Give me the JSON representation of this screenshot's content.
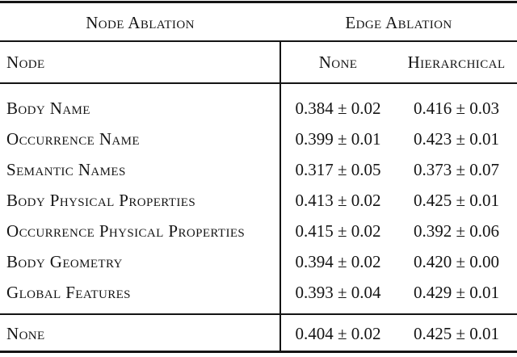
{
  "table": {
    "colors": {
      "text": "#141414",
      "rule": "#141414",
      "background": "#ffffff"
    },
    "group_header": {
      "node_ablation": "Node Ablation",
      "edge_ablation": "Edge Ablation"
    },
    "column_header": {
      "node": "Node",
      "none": "None",
      "hierarchical": "Hierarchical"
    },
    "rows": [
      {
        "label": "Body Name",
        "none": "0.384 ± 0.02",
        "hierarchical": "0.416 ± 0.03"
      },
      {
        "label": "Occurrence Name",
        "none": "0.399 ± 0.01",
        "hierarchical": "0.423 ± 0.01"
      },
      {
        "label": "Semantic Names",
        "none": "0.317 ± 0.05",
        "hierarchical": "0.373 ± 0.07"
      },
      {
        "label": "Body Physical Properties",
        "none": "0.413 ± 0.02",
        "hierarchical": "0.425 ± 0.01"
      },
      {
        "label": "Occurrence Physical Properties",
        "none": "0.415 ± 0.02",
        "hierarchical": "0.392 ± 0.06"
      },
      {
        "label": "Body Geometry",
        "none": "0.394 ± 0.02",
        "hierarchical": "0.420 ± 0.00"
      },
      {
        "label": "Global Features",
        "none": "0.393 ± 0.04",
        "hierarchical": "0.429 ± 0.01"
      }
    ],
    "footer_row": {
      "label": "None",
      "none": "0.404 ± 0.02",
      "hierarchical": "0.425 ± 0.01"
    }
  }
}
